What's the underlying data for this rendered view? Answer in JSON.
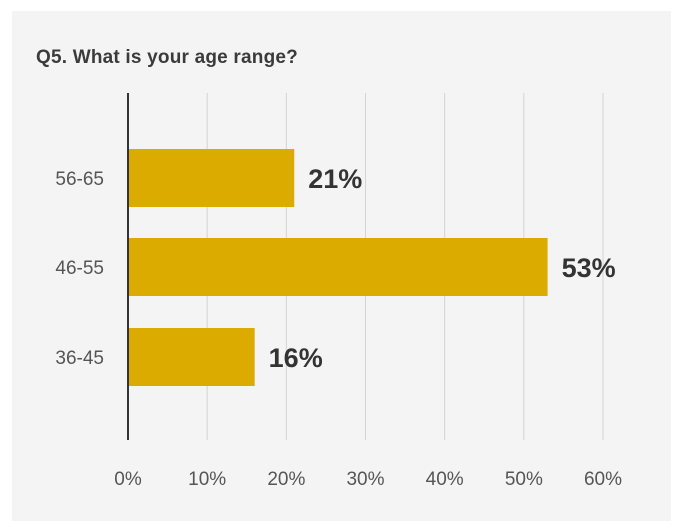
{
  "colors": {
    "bar": "#dbab00",
    "grid": "#d4d4d4",
    "axis": "#333333",
    "background": "#f4f4f4"
  },
  "chart_data": {
    "type": "bar",
    "orientation": "horizontal",
    "title": "Q5. What is your age range?",
    "categories": [
      "56-65",
      "46-55",
      "36-45"
    ],
    "values": [
      21,
      53,
      16
    ],
    "data_labels": [
      "21%",
      "53%",
      "16%"
    ],
    "xlim": [
      0,
      60
    ],
    "x_ticks": [
      0,
      10,
      20,
      30,
      40,
      50,
      60
    ],
    "x_tick_labels": [
      "0%",
      "10%",
      "20%",
      "30%",
      "40%",
      "50%",
      "60%"
    ],
    "grid": true,
    "legend": "none"
  }
}
